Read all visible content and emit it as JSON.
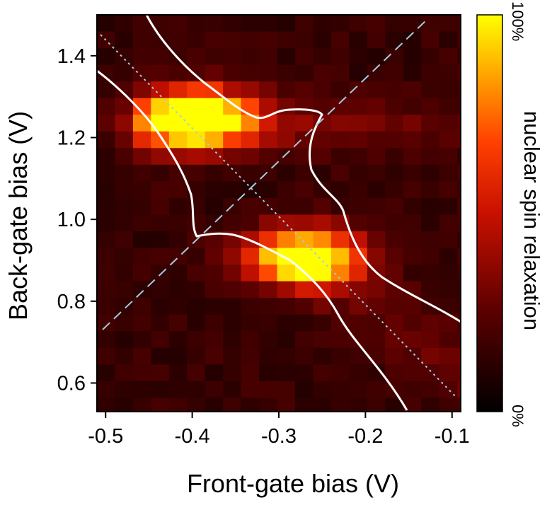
{
  "chart_data": {
    "type": "heatmap",
    "title": "",
    "xlabel": "Front-gate bias (V)",
    "ylabel": "Back-gate bias (V)",
    "xlim": [
      -0.51,
      -0.09
    ],
    "ylim": [
      0.53,
      1.5
    ],
    "x_ticks": [
      {
        "value": -0.5,
        "label": "-0.5"
      },
      {
        "value": -0.4,
        "label": "-0.4"
      },
      {
        "value": -0.3,
        "label": "-0.3"
      },
      {
        "value": -0.2,
        "label": "-0.2"
      },
      {
        "value": -0.1,
        "label": "-0.1"
      }
    ],
    "y_ticks": [
      {
        "value": 0.6,
        "label": "0.6"
      },
      {
        "value": 0.8,
        "label": "0.8"
      },
      {
        "value": 1.0,
        "label": "1.0"
      },
      {
        "value": 1.2,
        "label": "1.2"
      },
      {
        "value": 1.4,
        "label": "1.4"
      }
    ],
    "colorbar": {
      "label": "nuclear spin relaxation",
      "min_label": "0%",
      "max_label": "100%",
      "colors": [
        "#000000",
        "#5a0000",
        "#c81000",
        "#ff4000",
        "#ffa000",
        "#ffff00"
      ]
    },
    "grid": {
      "x_start": -0.51,
      "x_step": 0.0208,
      "y_top": 1.5,
      "y_step": -0.0407,
      "description": "intensity map, columns x 24 rows"
    },
    "intensity_peaks": [
      {
        "x": -0.395,
        "y": 1.25,
        "value": 1.0
      },
      {
        "x": -0.27,
        "y": 0.91,
        "value": 1.0
      }
    ],
    "overlay_lines": [
      {
        "style": "dashed",
        "color": "#9ecfe0",
        "from": [
          -0.505,
          0.73
        ],
        "to": [
          -0.115,
          1.495
        ]
      },
      {
        "style": "dotted",
        "color": "#9ecfe0",
        "from": [
          -0.505,
          1.46
        ],
        "to": [
          -0.095,
          0.57
        ]
      }
    ],
    "white_contours": 4
  }
}
